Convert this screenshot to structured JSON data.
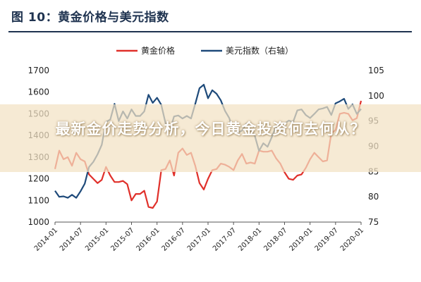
{
  "figure": {
    "title": "图 10：黄金价格与美元指数"
  },
  "overlay": {
    "headline": "最新金价走势分析，今日黄金投资何去何从？"
  },
  "chart_data": {
    "type": "line",
    "legend": {
      "placement": "top-center",
      "entries": [
        "黄金价格",
        "美元指数（右轴）"
      ]
    },
    "grid": false,
    "x_tick_labels": [
      "2014-01",
      "2014-07",
      "2015-01",
      "2015-07",
      "2016-01",
      "2016-07",
      "2017-01",
      "2017-07",
      "2018-01",
      "2018-07",
      "2019-01",
      "2019-07",
      "2020-01"
    ],
    "y_left": {
      "lim": [
        1000,
        1700
      ],
      "ticks": [
        1000,
        1100,
        1200,
        1300,
        1400,
        1500,
        1600,
        1700
      ]
    },
    "y_right": {
      "lim": [
        75,
        105
      ],
      "ticks": [
        75,
        80,
        85,
        90,
        95,
        100,
        105
      ]
    },
    "series": [
      {
        "name": "黄金价格",
        "axis": "left",
        "color": "#e0302a",
        "x": [
          "2014-01",
          "2014-02",
          "2014-03",
          "2014-04",
          "2014-05",
          "2014-06",
          "2014-07",
          "2014-08",
          "2014-09",
          "2014-10",
          "2014-11",
          "2014-12",
          "2015-01",
          "2015-02",
          "2015-03",
          "2015-04",
          "2015-05",
          "2015-06",
          "2015-07",
          "2015-08",
          "2015-09",
          "2015-10",
          "2015-11",
          "2015-12",
          "2016-01",
          "2016-02",
          "2016-03",
          "2016-04",
          "2016-05",
          "2016-06",
          "2016-07",
          "2016-08",
          "2016-09",
          "2016-10",
          "2016-11",
          "2016-12",
          "2017-01",
          "2017-02",
          "2017-03",
          "2017-04",
          "2017-05",
          "2017-06",
          "2017-07",
          "2017-08",
          "2017-09",
          "2017-10",
          "2017-11",
          "2017-12",
          "2018-01",
          "2018-02",
          "2018-03",
          "2018-04",
          "2018-05",
          "2018-06",
          "2018-07",
          "2018-08",
          "2018-09",
          "2018-10",
          "2018-11",
          "2018-12",
          "2019-01",
          "2019-02",
          "2019-03",
          "2019-04",
          "2019-05",
          "2019-06",
          "2019-07",
          "2019-08",
          "2019-09",
          "2019-10",
          "2019-11",
          "2019-12",
          "2020-01"
        ],
        "values": [
          1245,
          1330,
          1290,
          1300,
          1260,
          1320,
          1290,
          1280,
          1220,
          1200,
          1180,
          1195,
          1255,
          1215,
          1185,
          1185,
          1190,
          1175,
          1100,
          1130,
          1130,
          1145,
          1070,
          1065,
          1095,
          1240,
          1245,
          1285,
          1215,
          1320,
          1340,
          1310,
          1320,
          1260,
          1180,
          1150,
          1200,
          1240,
          1245,
          1270,
          1265,
          1255,
          1240,
          1285,
          1315,
          1270,
          1275,
          1270,
          1330,
          1325,
          1325,
          1330,
          1295,
          1270,
          1230,
          1200,
          1195,
          1215,
          1220,
          1250,
          1290,
          1320,
          1300,
          1280,
          1285,
          1410,
          1425,
          1500,
          1505,
          1500,
          1470,
          1480,
          1560
        ]
      },
      {
        "name": "美元指数（右轴）",
        "axis": "right",
        "color": "#1e4a7a",
        "x": [
          "2014-01",
          "2014-02",
          "2014-03",
          "2014-04",
          "2014-05",
          "2014-06",
          "2014-07",
          "2014-08",
          "2014-09",
          "2014-10",
          "2014-11",
          "2014-12",
          "2015-01",
          "2015-02",
          "2015-03",
          "2015-04",
          "2015-05",
          "2015-06",
          "2015-07",
          "2015-08",
          "2015-09",
          "2015-10",
          "2015-11",
          "2015-12",
          "2016-01",
          "2016-02",
          "2016-03",
          "2016-04",
          "2016-05",
          "2016-06",
          "2016-07",
          "2016-08",
          "2016-09",
          "2016-10",
          "2016-11",
          "2016-12",
          "2017-01",
          "2017-02",
          "2017-03",
          "2017-04",
          "2017-05",
          "2017-06",
          "2017-07",
          "2017-08",
          "2017-09",
          "2017-10",
          "2017-11",
          "2017-12",
          "2018-01",
          "2018-02",
          "2018-03",
          "2018-04",
          "2018-05",
          "2018-06",
          "2018-07",
          "2018-08",
          "2018-09",
          "2018-10",
          "2018-11",
          "2018-12",
          "2019-01",
          "2019-02",
          "2019-03",
          "2019-04",
          "2019-05",
          "2019-06",
          "2019-07",
          "2019-08",
          "2019-09",
          "2019-10",
          "2019-11",
          "2019-12",
          "2020-01"
        ],
        "values": [
          81.2,
          80.0,
          80.1,
          79.8,
          80.4,
          79.8,
          81.1,
          82.6,
          85.9,
          86.9,
          88.4,
          90.3,
          94.8,
          95.3,
          98.4,
          95.0,
          96.9,
          95.5,
          97.3,
          96.0,
          96.0,
          96.9,
          100.2,
          98.6,
          99.6,
          98.2,
          94.6,
          93.1,
          95.9,
          96.1,
          95.5,
          96.0,
          95.5,
          98.4,
          101.5,
          102.2,
          99.5,
          101.1,
          100.4,
          99.1,
          97.0,
          95.6,
          92.9,
          92.7,
          93.1,
          94.5,
          93.1,
          92.1,
          89.1,
          90.6,
          89.9,
          91.8,
          94.0,
          94.5,
          94.5,
          95.1,
          94.8,
          97.1,
          97.3,
          96.2,
          95.6,
          96.4,
          97.3,
          97.5,
          97.8,
          96.2,
          98.5,
          98.9,
          99.4,
          97.4,
          98.3,
          96.4,
          97.4
        ]
      }
    ]
  }
}
